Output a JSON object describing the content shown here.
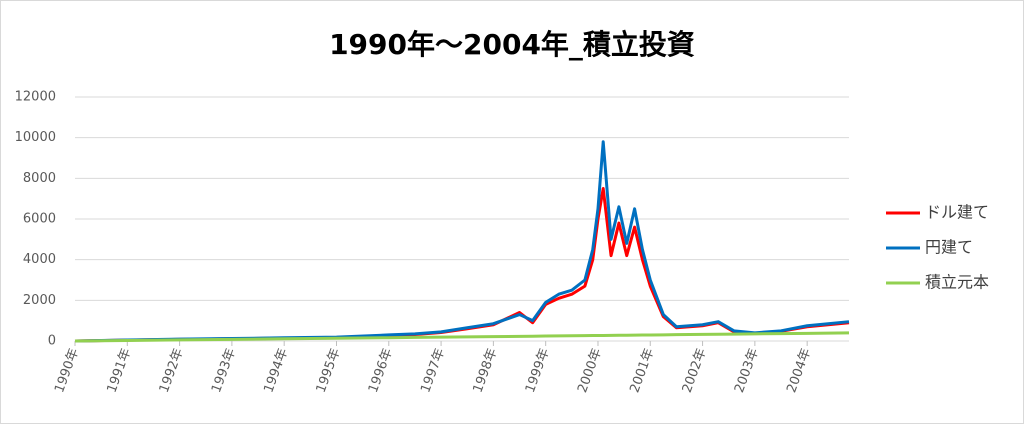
{
  "chart_data": {
    "type": "line",
    "title": "1990年～2004年_積立投資",
    "x": [
      1990,
      1991,
      1992,
      1993,
      1994,
      1995,
      1996,
      1996.5,
      1997,
      1997.5,
      1998,
      1998.5,
      1998.75,
      1999,
      1999.25,
      1999.5,
      1999.75,
      1999.9,
      2000,
      2000.1,
      2000.25,
      2000.4,
      2000.55,
      2000.7,
      2000.85,
      2001,
      2001.25,
      2001.5,
      2002,
      2002.3,
      2002.6,
      2003,
      2003.5,
      2004,
      2004.4,
      2004.8
    ],
    "series": [
      {
        "name": "ドル建て",
        "color": "#ff0000",
        "values": [
          0,
          45,
          80,
          110,
          140,
          170,
          270,
          320,
          420,
          600,
          800,
          1400,
          900,
          1800,
          2100,
          2300,
          2700,
          4000,
          6000,
          7500,
          4200,
          5800,
          4200,
          5600,
          4000,
          2700,
          1200,
          650,
          750,
          900,
          450,
          380,
          480,
          700,
          800,
          900
        ]
      },
      {
        "name": "円建て",
        "color": "#0070c0",
        "values": [
          0,
          50,
          90,
          120,
          160,
          190,
          300,
          350,
          450,
          650,
          850,
          1300,
          1000,
          1900,
          2300,
          2500,
          3000,
          4500,
          6500,
          9800,
          5000,
          6600,
          4800,
          6500,
          4500,
          3000,
          1300,
          700,
          800,
          950,
          500,
          400,
          500,
          750,
          850,
          950
        ]
      },
      {
        "name": "積立元本",
        "color": "#92d050",
        "values": [
          0,
          27,
          54,
          81,
          108,
          135,
          162,
          176,
          189,
          203,
          216,
          230,
          236,
          243,
          250,
          257,
          264,
          268,
          270,
          273,
          277,
          281,
          285,
          289,
          293,
          297,
          304,
          311,
          324,
          332,
          340,
          351,
          365,
          378,
          389,
          400
        ]
      }
    ],
    "xlim": [
      1990,
      2004.8
    ],
    "xticks": [
      {
        "value": 1990,
        "label": "1990年"
      },
      {
        "value": 1991,
        "label": "1991年"
      },
      {
        "value": 1992,
        "label": "1992年"
      },
      {
        "value": 1993,
        "label": "1993年"
      },
      {
        "value": 1994,
        "label": "1994年"
      },
      {
        "value": 1995,
        "label": "1995年"
      },
      {
        "value": 1996,
        "label": "1996年"
      },
      {
        "value": 1997,
        "label": "1997年"
      },
      {
        "value": 1998,
        "label": "1998年"
      },
      {
        "value": 1999,
        "label": "1999年"
      },
      {
        "value": 2000,
        "label": "2000年"
      },
      {
        "value": 2001,
        "label": "2001年"
      },
      {
        "value": 2002,
        "label": "2002年"
      },
      {
        "value": 2003,
        "label": "2003年"
      },
      {
        "value": 2004,
        "label": "2004年"
      }
    ],
    "ylim": [
      0,
      12000
    ],
    "yticks": [
      0,
      2000,
      4000,
      6000,
      8000,
      10000,
      12000
    ],
    "grid": true,
    "legend": "right"
  }
}
